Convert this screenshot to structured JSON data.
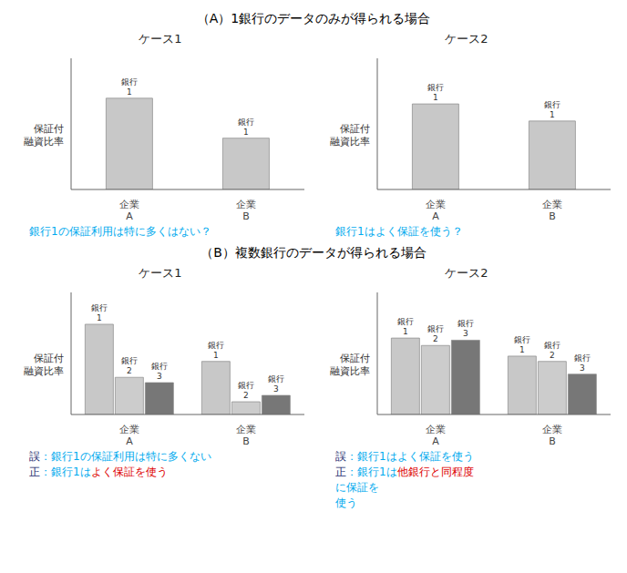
{
  "chart_data": [
    {
      "type": "bar",
      "heading": "（A）1銀行のデータのみが得られる場合",
      "title": "ケース1",
      "ylabel": "保証付\n融資比率",
      "categories": [
        "企業\nA",
        "企業\nB"
      ],
      "series": [
        {
          "name": "銀行\n1",
          "color": "#C8C8C8",
          "values": [
            0.8,
            0.45
          ]
        }
      ],
      "ylim": [
        0,
        1.15
      ],
      "tick_labels": "x",
      "annotations": [
        [
          {
            "text": "銀行1の保証利用は特に多くはない？",
            "color": "#00AAEE"
          }
        ]
      ]
    },
    {
      "type": "bar",
      "title": "ケース2",
      "ylabel": "保証付\n融資比率",
      "categories": [
        "企業\nA",
        "企業\nB"
      ],
      "series": [
        {
          "name": "銀行\n1",
          "color": "#C8C8C8",
          "values": [
            0.75,
            0.6
          ]
        }
      ],
      "ylim": [
        0,
        1.15
      ],
      "tick_labels": "x",
      "annotations": [
        [
          {
            "text": "銀行1はよく保証を使う？",
            "color": "#00AAEE"
          }
        ]
      ]
    },
    {
      "type": "bar",
      "heading": "（B）複数銀行のデータが得られる場合",
      "title": "ケース1",
      "ylabel": "保証付\n融資比率",
      "categories": [
        "企業\nA",
        "企業\nB"
      ],
      "series": [
        {
          "name": "銀行\n1",
          "color": "#C8C8C8",
          "values": [
            0.85,
            0.5
          ]
        },
        {
          "name": "銀行\n2",
          "color": "#CCCCCC",
          "values": [
            0.35,
            0.12
          ]
        },
        {
          "name": "銀行\n3",
          "color": "#777777",
          "values": [
            0.3,
            0.18
          ]
        }
      ],
      "ylim": [
        0,
        1.15
      ],
      "tick_labels": "x",
      "annotations": [
        [
          {
            "text": "誤",
            "color": "#1A2A6E"
          },
          {
            "text": "：銀行1の保証利用は特に多くない",
            "color": "#00AAEE"
          }
        ],
        [
          {
            "text": "正",
            "color": "#1A2A6E"
          },
          {
            "text": "：銀行1は",
            "color": "#00AAEE"
          },
          {
            "text": "よく保証を使う",
            "color": "#DD0000"
          }
        ]
      ]
    },
    {
      "type": "bar",
      "title": "ケース2",
      "ylabel": "保証付\n融資比率",
      "categories": [
        "企業\nA",
        "企業\nB"
      ],
      "series": [
        {
          "name": "銀行\n1",
          "color": "#C8C8C8",
          "values": [
            0.72,
            0.55
          ]
        },
        {
          "name": "銀行\n2",
          "color": "#CCCCCC",
          "values": [
            0.65,
            0.5
          ]
        },
        {
          "name": "銀行\n3",
          "color": "#777777",
          "values": [
            0.7,
            0.38
          ]
        }
      ],
      "ylim": [
        0,
        1.15
      ],
      "tick_labels": "x",
      "annotations": [
        [
          {
            "text": "誤",
            "color": "#1A2A6E"
          },
          {
            "text": "：銀行1はよく保証を使う",
            "color": "#00AAEE"
          }
        ],
        [
          {
            "text": "正",
            "color": "#1A2A6E"
          },
          {
            "text": "：銀行1は",
            "color": "#00AAEE"
          },
          {
            "text": "他銀行と同程度",
            "color": "#DD0000"
          }
        ],
        [
          {
            "text": "に保証を",
            "color": "#00AAEE"
          }
        ],
        [
          {
            "text": "使う",
            "color": "#00AAEE"
          }
        ]
      ]
    }
  ]
}
